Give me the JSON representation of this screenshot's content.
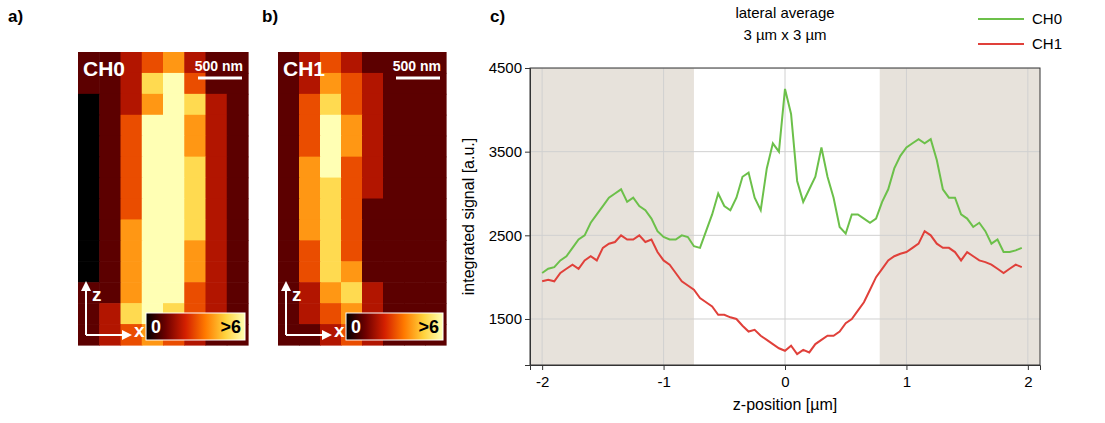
{
  "chart_data": [
    {
      "type": "heatmap",
      "panel": "a)",
      "label": "CH0",
      "scale_bar": "500 nm",
      "x_label": "x",
      "y_label": "z",
      "cells": [
        [
          1,
          1,
          2,
          3,
          4,
          2,
          1,
          1
        ],
        [
          1,
          1,
          2,
          5,
          7,
          3,
          1,
          1
        ],
        [
          0,
          1,
          2,
          4,
          6,
          5,
          2,
          1
        ],
        [
          0,
          1,
          3,
          8,
          9,
          4,
          2,
          1
        ],
        [
          0,
          1,
          3,
          9,
          9,
          4,
          2,
          1
        ],
        [
          0,
          1,
          3,
          9,
          9,
          5,
          2,
          1
        ],
        [
          0,
          1,
          3,
          9,
          9,
          5,
          2,
          1
        ],
        [
          0,
          1,
          3,
          9,
          9,
          5,
          2,
          1
        ],
        [
          0,
          1,
          4,
          9,
          9,
          5,
          2,
          1
        ],
        [
          0,
          1,
          4,
          9,
          9,
          4,
          2,
          1
        ],
        [
          0,
          1,
          4,
          9,
          9,
          4,
          2,
          1
        ],
        [
          1,
          1,
          4,
          9,
          8,
          3,
          2,
          1
        ],
        [
          1,
          2,
          5,
          7,
          5,
          3,
          2,
          1
        ],
        [
          1,
          2,
          3,
          4,
          3,
          2,
          1,
          1
        ]
      ],
      "colorbar": {
        "range": [
          0,
          6
        ],
        "ticks": [
          {
            "value": 0,
            "label": "0"
          },
          {
            "value": 6,
            "label": ">6"
          }
        ]
      }
    },
    {
      "type": "heatmap",
      "panel": "b)",
      "label": "CH1",
      "scale_bar": "500 nm",
      "x_label": "x",
      "y_label": "z",
      "cells": [
        [
          1,
          2,
          3,
          2,
          1,
          1,
          1,
          1
        ],
        [
          1,
          2,
          4,
          3,
          2,
          1,
          1,
          1
        ],
        [
          1,
          3,
          5,
          3,
          2,
          1,
          1,
          1
        ],
        [
          1,
          3,
          6,
          4,
          2,
          1,
          1,
          1
        ],
        [
          1,
          3,
          6,
          4,
          2,
          1,
          1,
          1
        ],
        [
          1,
          4,
          6,
          3,
          2,
          1,
          1,
          1
        ],
        [
          1,
          4,
          5,
          3,
          2,
          1,
          1,
          1
        ],
        [
          1,
          4,
          5,
          3,
          1,
          1,
          1,
          1
        ],
        [
          1,
          4,
          5,
          3,
          1,
          1,
          1,
          1
        ],
        [
          1,
          3,
          5,
          3,
          1,
          1,
          1,
          1
        ],
        [
          1,
          3,
          5,
          4,
          1,
          1,
          1,
          1
        ],
        [
          1,
          2,
          4,
          5,
          2,
          1,
          1,
          1
        ],
        [
          1,
          2,
          3,
          4,
          2,
          1,
          1,
          1
        ],
        [
          1,
          1,
          2,
          3,
          2,
          1,
          1,
          1
        ]
      ],
      "colorbar": {
        "range": [
          0,
          6
        ],
        "ticks": [
          {
            "value": 0,
            "label": "0"
          },
          {
            "value": 6,
            "label": ">6"
          }
        ]
      }
    },
    {
      "type": "line",
      "panel": "c)",
      "title": "lateral average",
      "subtitle": "3 µm x 3 µm",
      "x_label": "z-position [µm]",
      "y_label": "integrated signal [a.u.]",
      "x": [
        -2,
        -1.95,
        -1.9,
        -1.85,
        -1.8,
        -1.75,
        -1.7,
        -1.65,
        -1.6,
        -1.55,
        -1.5,
        -1.45,
        -1.4,
        -1.35,
        -1.3,
        -1.25,
        -1.2,
        -1.15,
        -1.1,
        -1.05,
        -1,
        -0.95,
        -0.9,
        -0.85,
        -0.8,
        -0.75,
        -0.7,
        -0.65,
        -0.6,
        -0.55,
        -0.5,
        -0.45,
        -0.4,
        -0.35,
        -0.3,
        -0.25,
        -0.2,
        -0.15,
        -0.1,
        -0.05,
        0,
        0.05,
        0.1,
        0.15,
        0.2,
        0.25,
        0.3,
        0.35,
        0.4,
        0.45,
        0.5,
        0.55,
        0.6,
        0.65,
        0.7,
        0.75,
        0.8,
        0.85,
        0.9,
        0.95,
        1,
        1.05,
        1.1,
        1.15,
        1.2,
        1.25,
        1.3,
        1.35,
        1.4,
        1.45,
        1.5,
        1.55,
        1.6,
        1.65,
        1.7,
        1.75,
        1.8,
        1.85,
        1.9,
        1.95
      ],
      "series": [
        {
          "name": "CH0",
          "color": "#6cc04a",
          "values": [
            2050,
            2100,
            2120,
            2200,
            2250,
            2350,
            2450,
            2500,
            2650,
            2750,
            2850,
            2950,
            3000,
            3050,
            2900,
            2950,
            2850,
            2800,
            2700,
            2550,
            2480,
            2450,
            2450,
            2500,
            2480,
            2370,
            2350,
            2550,
            2750,
            3000,
            2850,
            2800,
            2950,
            3200,
            3250,
            2950,
            2800,
            3300,
            3600,
            3500,
            4250,
            3950,
            3150,
            2900,
            3050,
            3200,
            3550,
            3200,
            2950,
            2600,
            2520,
            2750,
            2750,
            2700,
            2650,
            2700,
            2900,
            3050,
            3300,
            3450,
            3550,
            3600,
            3650,
            3600,
            3650,
            3400,
            3050,
            2950,
            2950,
            2750,
            2700,
            2600,
            2650,
            2550,
            2400,
            2450,
            2300,
            2300,
            2320,
            2350
          ]
        },
        {
          "name": "CH1",
          "color": "#e0403a",
          "values": [
            1950,
            1970,
            1950,
            2050,
            2100,
            2150,
            2100,
            2200,
            2250,
            2200,
            2350,
            2400,
            2420,
            2500,
            2450,
            2450,
            2500,
            2420,
            2450,
            2300,
            2200,
            2150,
            2050,
            1950,
            1900,
            1850,
            1750,
            1700,
            1650,
            1550,
            1550,
            1520,
            1500,
            1420,
            1350,
            1370,
            1300,
            1250,
            1200,
            1150,
            1120,
            1180,
            1080,
            1130,
            1100,
            1200,
            1250,
            1300,
            1300,
            1350,
            1450,
            1500,
            1600,
            1700,
            1850,
            2000,
            2100,
            2200,
            2250,
            2280,
            2300,
            2350,
            2400,
            2550,
            2500,
            2400,
            2350,
            2350,
            2300,
            2200,
            2300,
            2250,
            2200,
            2180,
            2150,
            2100,
            2050,
            2100,
            2150,
            2120
          ]
        }
      ],
      "shaded_regions": [
        [
          -2.1,
          -0.75
        ],
        [
          0.78,
          2.1
        ]
      ],
      "xlim": [
        -2.1,
        2.1
      ],
      "ylim": [
        950,
        4500
      ],
      "xticks": [
        -2,
        -1,
        0,
        1,
        2
      ],
      "yticks": [
        1500,
        2500,
        3500,
        4500
      ],
      "grid": true,
      "legend": "top-right"
    }
  ]
}
